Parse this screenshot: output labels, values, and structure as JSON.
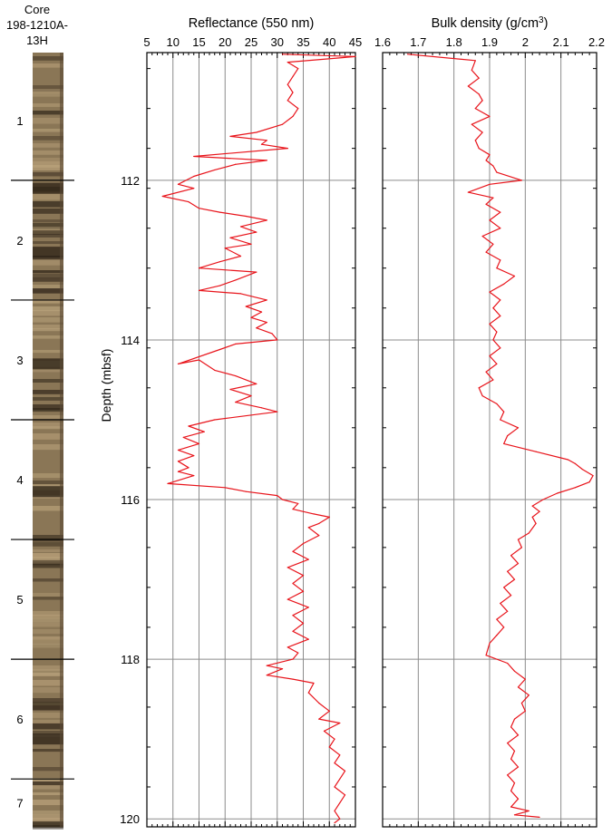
{
  "core": {
    "title_line1": "Core",
    "title_line2": "198-1210A-13H",
    "sections": [
      {
        "label": "1",
        "top_depth": 110.5,
        "bottom_depth": 112.0
      },
      {
        "label": "2",
        "top_depth": 112.0,
        "bottom_depth": 113.5
      },
      {
        "label": "3",
        "top_depth": 113.5,
        "bottom_depth": 115.0
      },
      {
        "label": "4",
        "top_depth": 115.0,
        "bottom_depth": 116.5
      },
      {
        "label": "5",
        "top_depth": 116.5,
        "bottom_depth": 118.0
      },
      {
        "label": "6",
        "top_depth": 118.0,
        "bottom_depth": 119.5
      },
      {
        "label": "7",
        "top_depth": 119.5,
        "bottom_depth": 120.1
      }
    ],
    "colors": {
      "base": "#8a7656",
      "light": "#b9a27b",
      "dark": "#2b2116"
    }
  },
  "y_axis": {
    "label": "Depth (mbsf)",
    "ylim": [
      110.4,
      120.1
    ],
    "ticks": [
      112,
      114,
      116,
      118,
      120
    ],
    "tick_labels": [
      "112",
      "114",
      "116",
      "118",
      "120"
    ]
  },
  "chart_data": [
    {
      "type": "line",
      "title": "Reflectance (550 nm)",
      "xlim": [
        5,
        45
      ],
      "x_ticks": [
        5,
        10,
        15,
        20,
        25,
        30,
        35,
        40,
        45
      ],
      "x_tick_labels": [
        "5",
        "10",
        "15",
        "20",
        "25",
        "30",
        "35",
        "40",
        "45"
      ],
      "grid": true,
      "color": "#e8141b",
      "points": [
        [
          31,
          110.42
        ],
        [
          45,
          110.45
        ],
        [
          32,
          110.52
        ],
        [
          34,
          110.6
        ],
        [
          33,
          110.7
        ],
        [
          32,
          110.8
        ],
        [
          33,
          110.9
        ],
        [
          32,
          111.0
        ],
        [
          34,
          111.1
        ],
        [
          33,
          111.2
        ],
        [
          31,
          111.3
        ],
        [
          26,
          111.4
        ],
        [
          21,
          111.45
        ],
        [
          28,
          111.5
        ],
        [
          27,
          111.55
        ],
        [
          32,
          111.6
        ],
        [
          14,
          111.7
        ],
        [
          28,
          111.75
        ],
        [
          22,
          111.8
        ],
        [
          18,
          111.87
        ],
        [
          14,
          111.95
        ],
        [
          11,
          112.05
        ],
        [
          14,
          112.1
        ],
        [
          8,
          112.2
        ],
        [
          13,
          112.27
        ],
        [
          15,
          112.35
        ],
        [
          19,
          112.4
        ],
        [
          24,
          112.45
        ],
        [
          28,
          112.5
        ],
        [
          23,
          112.58
        ],
        [
          26,
          112.65
        ],
        [
          21,
          112.72
        ],
        [
          25,
          112.8
        ],
        [
          20,
          112.85
        ],
        [
          23,
          112.95
        ],
        [
          19,
          113.02
        ],
        [
          15,
          113.1
        ],
        [
          26,
          113.15
        ],
        [
          22,
          113.25
        ],
        [
          19,
          113.32
        ],
        [
          15,
          113.38
        ],
        [
          23,
          113.42
        ],
        [
          28,
          113.5
        ],
        [
          24,
          113.58
        ],
        [
          27,
          113.65
        ],
        [
          25,
          113.72
        ],
        [
          28,
          113.78
        ],
        [
          26,
          113.85
        ],
        [
          29,
          113.92
        ],
        [
          30,
          114.0
        ],
        [
          22,
          114.05
        ],
        [
          19,
          114.12
        ],
        [
          11,
          114.3
        ],
        [
          15,
          114.25
        ],
        [
          18,
          114.38
        ],
        [
          22,
          114.45
        ],
        [
          26,
          114.55
        ],
        [
          21,
          114.62
        ],
        [
          25,
          114.7
        ],
        [
          22,
          114.78
        ],
        [
          27,
          114.85
        ],
        [
          30,
          114.9
        ],
        [
          18,
          115.0
        ],
        [
          13,
          115.08
        ],
        [
          16,
          115.15
        ],
        [
          12,
          115.22
        ],
        [
          15,
          115.3
        ],
        [
          11,
          115.38
        ],
        [
          14,
          115.45
        ],
        [
          11,
          115.52
        ],
        [
          13,
          115.6
        ],
        [
          11,
          115.65
        ],
        [
          14,
          115.7
        ],
        [
          9,
          115.8
        ],
        [
          20,
          115.85
        ],
        [
          24,
          115.9
        ],
        [
          30,
          115.95
        ],
        [
          31,
          116.0
        ],
        [
          34,
          116.05
        ],
        [
          33,
          116.12
        ],
        [
          37,
          116.18
        ],
        [
          40,
          116.22
        ],
        [
          38,
          116.3
        ],
        [
          36,
          116.35
        ],
        [
          38,
          116.45
        ],
        [
          35,
          116.55
        ],
        [
          33,
          116.65
        ],
        [
          36,
          116.75
        ],
        [
          32,
          116.85
        ],
        [
          35,
          116.95
        ],
        [
          33,
          117.05
        ],
        [
          35,
          117.15
        ],
        [
          32,
          117.25
        ],
        [
          36,
          117.35
        ],
        [
          33,
          117.45
        ],
        [
          35,
          117.55
        ],
        [
          33,
          117.65
        ],
        [
          36,
          117.75
        ],
        [
          32,
          117.85
        ],
        [
          34,
          117.92
        ],
        [
          33,
          118.0
        ],
        [
          28,
          118.08
        ],
        [
          31,
          118.12
        ],
        [
          28,
          118.2
        ],
        [
          33,
          118.25
        ],
        [
          37,
          118.3
        ],
        [
          36,
          118.42
        ],
        [
          38,
          118.55
        ],
        [
          40,
          118.65
        ],
        [
          38,
          118.75
        ],
        [
          42,
          118.8
        ],
        [
          39,
          118.9
        ],
        [
          41,
          119.0
        ],
        [
          40,
          119.1
        ],
        [
          42,
          119.2
        ],
        [
          41,
          119.3
        ],
        [
          43,
          119.4
        ],
        [
          42,
          119.5
        ],
        [
          41,
          119.6
        ],
        [
          43,
          119.7
        ],
        [
          42,
          119.8
        ],
        [
          41,
          119.9
        ],
        [
          42,
          120.0
        ],
        [
          41,
          120.05
        ]
      ]
    },
    {
      "type": "line",
      "title": "Bulk density (g/cm",
      "title_superscript": "3",
      "title_suffix": ")",
      "xlim": [
        1.6,
        2.2
      ],
      "x_ticks": [
        1.6,
        1.7,
        1.8,
        1.9,
        2.0,
        2.1,
        2.2
      ],
      "x_tick_labels": [
        "1.6",
        "1.7",
        "1.8",
        "1.9",
        "2",
        "2.1",
        "2.2"
      ],
      "grid": true,
      "color": "#e8141b",
      "points": [
        [
          1.67,
          110.42
        ],
        [
          1.86,
          110.5
        ],
        [
          1.85,
          110.62
        ],
        [
          1.87,
          110.72
        ],
        [
          1.84,
          110.82
        ],
        [
          1.87,
          110.92
        ],
        [
          1.88,
          111.0
        ],
        [
          1.86,
          111.1
        ],
        [
          1.9,
          111.2
        ],
        [
          1.85,
          111.3
        ],
        [
          1.88,
          111.4
        ],
        [
          1.86,
          111.5
        ],
        [
          1.87,
          111.6
        ],
        [
          1.9,
          111.68
        ],
        [
          1.89,
          111.75
        ],
        [
          1.91,
          111.82
        ],
        [
          1.92,
          111.9
        ],
        [
          1.99,
          112.0
        ],
        [
          1.9,
          112.05
        ],
        [
          1.84,
          112.15
        ],
        [
          1.91,
          112.22
        ],
        [
          1.89,
          112.3
        ],
        [
          1.93,
          112.4
        ],
        [
          1.9,
          112.5
        ],
        [
          1.93,
          112.6
        ],
        [
          1.88,
          112.7
        ],
        [
          1.91,
          112.8
        ],
        [
          1.89,
          112.9
        ],
        [
          1.93,
          113.0
        ],
        [
          1.92,
          113.1
        ],
        [
          1.97,
          113.2
        ],
        [
          1.94,
          113.3
        ],
        [
          1.9,
          113.4
        ],
        [
          1.93,
          113.5
        ],
        [
          1.91,
          113.6
        ],
        [
          1.93,
          113.7
        ],
        [
          1.9,
          113.8
        ],
        [
          1.92,
          113.9
        ],
        [
          1.91,
          114.0
        ],
        [
          1.93,
          114.1
        ],
        [
          1.9,
          114.2
        ],
        [
          1.92,
          114.3
        ],
        [
          1.89,
          114.4
        ],
        [
          1.91,
          114.5
        ],
        [
          1.87,
          114.6
        ],
        [
          1.88,
          114.7
        ],
        [
          1.92,
          114.8
        ],
        [
          1.94,
          114.9
        ],
        [
          1.93,
          115.0
        ],
        [
          1.98,
          115.1
        ],
        [
          1.95,
          115.2
        ],
        [
          1.94,
          115.3
        ],
        [
          2.03,
          115.4
        ],
        [
          2.12,
          115.5
        ],
        [
          2.14,
          115.55
        ],
        [
          2.16,
          115.62
        ],
        [
          2.19,
          115.7
        ],
        [
          2.18,
          115.78
        ],
        [
          2.14,
          115.85
        ],
        [
          2.09,
          115.92
        ],
        [
          2.05,
          116.0
        ],
        [
          2.02,
          116.08
        ],
        [
          2.04,
          116.15
        ],
        [
          2.02,
          116.22
        ],
        [
          2.03,
          116.3
        ],
        [
          2.01,
          116.42
        ],
        [
          1.98,
          116.5
        ],
        [
          1.99,
          116.6
        ],
        [
          1.96,
          116.7
        ],
        [
          1.98,
          116.8
        ],
        [
          1.95,
          116.9
        ],
        [
          1.97,
          117.0
        ],
        [
          1.94,
          117.1
        ],
        [
          1.96,
          117.2
        ],
        [
          1.93,
          117.3
        ],
        [
          1.95,
          117.4
        ],
        [
          1.92,
          117.5
        ],
        [
          1.94,
          117.6
        ],
        [
          1.92,
          117.7
        ],
        [
          1.9,
          117.8
        ],
        [
          1.89,
          117.95
        ],
        [
          1.95,
          118.05
        ],
        [
          1.97,
          118.15
        ],
        [
          2.0,
          118.25
        ],
        [
          1.98,
          118.35
        ],
        [
          2.01,
          118.45
        ],
        [
          1.99,
          118.55
        ],
        [
          2.0,
          118.65
        ],
        [
          1.97,
          118.75
        ],
        [
          1.96,
          118.85
        ],
        [
          1.98,
          118.95
        ],
        [
          1.95,
          119.05
        ],
        [
          1.97,
          119.15
        ],
        [
          1.96,
          119.25
        ],
        [
          1.98,
          119.35
        ],
        [
          1.95,
          119.45
        ],
        [
          1.97,
          119.55
        ],
        [
          1.96,
          119.65
        ],
        [
          1.98,
          119.75
        ],
        [
          1.96,
          119.85
        ],
        [
          2.01,
          119.9
        ],
        [
          1.97,
          119.95
        ],
        [
          2.04,
          119.98
        ]
      ]
    }
  ]
}
